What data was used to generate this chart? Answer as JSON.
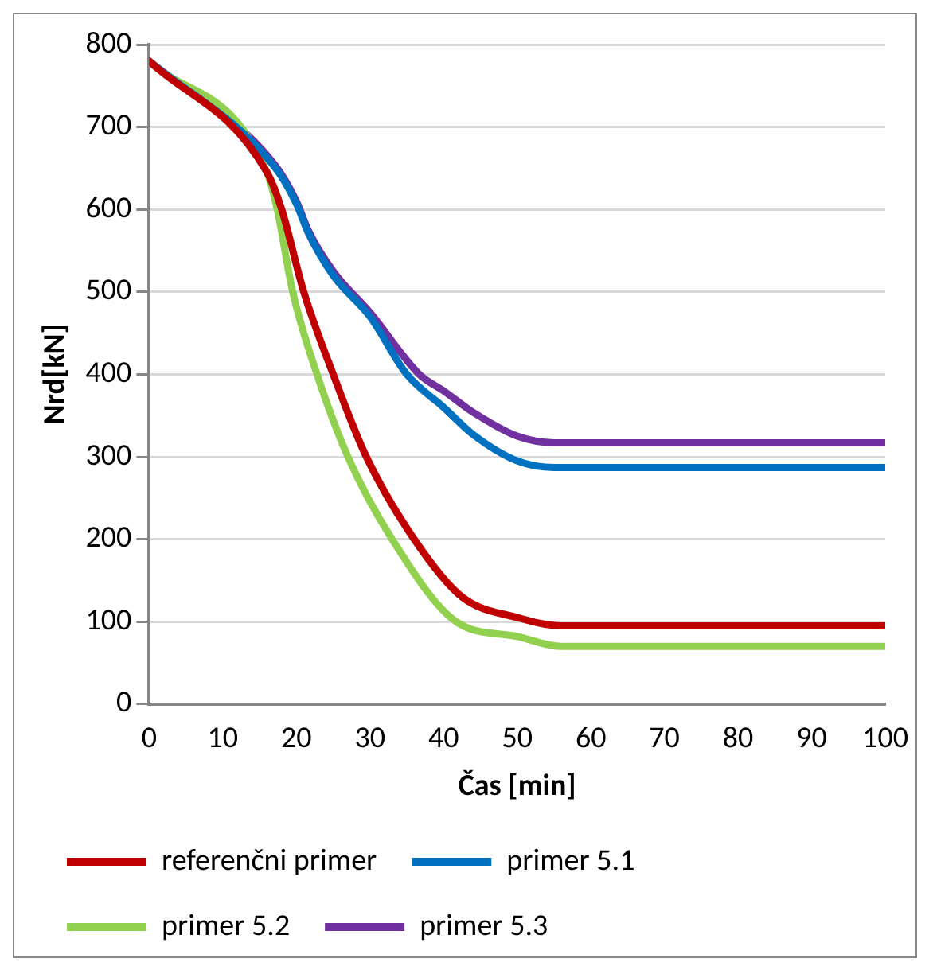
{
  "chart_data": {
    "type": "line",
    "xlabel": "Čas [min]",
    "ylabel": "Nrd[kN]",
    "xlim": [
      0,
      100
    ],
    "xticks": [
      0,
      10,
      20,
      30,
      40,
      50,
      60,
      70,
      80,
      90,
      100
    ],
    "ylim": [
      0,
      800
    ],
    "yticks": [
      0,
      100,
      200,
      300,
      400,
      500,
      600,
      700,
      800
    ],
    "grid": "y",
    "legend": "bottom",
    "marker": "none",
    "series": [
      {
        "name": "referenčni primer",
        "color": "#c00000",
        "x": [
          0,
          16,
          18,
          21,
          25,
          29.5,
          36,
          42.5,
          50,
          56,
          100
        ],
        "values": [
          780,
          645,
          600,
          500,
          400,
          300,
          200,
          130,
          105,
          95,
          95
        ]
      },
      {
        "name": "primer 5.1",
        "color": "#0070c0",
        "x": [
          0,
          17,
          20,
          21.6,
          25,
          30,
          35,
          40,
          44,
          50,
          55,
          100
        ],
        "values": [
          780,
          652,
          607,
          572,
          520,
          470,
          400,
          360,
          327,
          295,
          287,
          287
        ]
      },
      {
        "name": "primer 5.2",
        "color": "#92d050",
        "x": [
          0,
          16,
          17.4,
          19.5,
          22.8,
          27,
          33,
          41.7,
          50,
          56,
          100
        ],
        "values": [
          780,
          645,
          600,
          500,
          400,
          300,
          200,
          100,
          82,
          70,
          70
        ]
      },
      {
        "name": "primer 5.3",
        "color": "#7030a0",
        "x": [
          0,
          17,
          20,
          21.6,
          25,
          30,
          36.7,
          40,
          44,
          50,
          55,
          100
        ],
        "values": [
          780,
          655,
          610,
          575,
          525,
          475,
          400,
          380,
          354,
          325,
          317,
          317
        ]
      }
    ]
  }
}
